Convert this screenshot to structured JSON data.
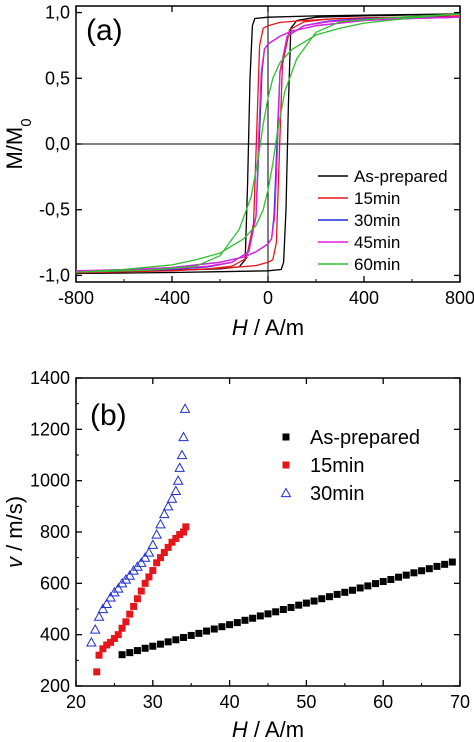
{
  "chart_data": [
    {
      "type": "line",
      "panel_label": "(a)",
      "xlabel_italic": "H",
      "xlabel_rest": " / A/m",
      "ylabel_main": "M/M",
      "ylabel_sub": "0",
      "xlim": [
        -800,
        800
      ],
      "ylim": [
        -1.05,
        1.05
      ],
      "xticks": [
        -800,
        -400,
        0,
        400,
        800
      ],
      "xtick_labels": [
        "-800",
        "-400",
        "0",
        "400",
        "800"
      ],
      "yticks": [
        -1.0,
        -0.5,
        0.0,
        0.5,
        1.0
      ],
      "ytick_labels": [
        "-1,0",
        "-0,5",
        "0,0",
        "0,5",
        "1,0"
      ],
      "zero_lines": true,
      "legend_position": "lower-right",
      "series": [
        {
          "name": "As-prepared",
          "color": "#000000",
          "upper": [
            [
              -800,
              -0.975
            ],
            [
              -400,
              -0.96
            ],
            [
              -200,
              -0.95
            ],
            [
              -120,
              -0.935
            ],
            [
              -95,
              -0.88
            ],
            [
              -85,
              -0.3
            ],
            [
              -75,
              0.5
            ],
            [
              -65,
              0.9
            ],
            [
              -55,
              0.955
            ],
            [
              0,
              0.965
            ],
            [
              200,
              0.975
            ],
            [
              400,
              0.98
            ],
            [
              600,
              0.985
            ],
            [
              800,
              0.99
            ]
          ],
          "lower": [
            [
              800,
              0.99
            ],
            [
              400,
              0.975
            ],
            [
              200,
              0.965
            ],
            [
              120,
              0.94
            ],
            [
              95,
              0.88
            ],
            [
              85,
              0.3
            ],
            [
              75,
              -0.5
            ],
            [
              65,
              -0.9
            ],
            [
              55,
              -0.955
            ],
            [
              0,
              -0.965
            ],
            [
              -200,
              -0.972
            ],
            [
              -400,
              -0.978
            ],
            [
              -800,
              -0.985
            ]
          ]
        },
        {
          "name": "15min",
          "color": "#e4161b",
          "upper": [
            [
              -800,
              -0.98
            ],
            [
              -400,
              -0.965
            ],
            [
              -250,
              -0.95
            ],
            [
              -150,
              -0.93
            ],
            [
              -90,
              -0.87
            ],
            [
              -60,
              -0.6
            ],
            [
              -45,
              0.2
            ],
            [
              -35,
              0.75
            ],
            [
              -20,
              0.88
            ],
            [
              0,
              0.9
            ],
            [
              50,
              0.925
            ],
            [
              150,
              0.94
            ],
            [
              300,
              0.955
            ],
            [
              500,
              0.96
            ],
            [
              800,
              0.975
            ]
          ],
          "lower": [
            [
              800,
              0.975
            ],
            [
              400,
              0.96
            ],
            [
              250,
              0.95
            ],
            [
              150,
              0.93
            ],
            [
              90,
              0.87
            ],
            [
              60,
              0.6
            ],
            [
              45,
              -0.2
            ],
            [
              35,
              -0.75
            ],
            [
              20,
              -0.88
            ],
            [
              0,
              -0.9
            ],
            [
              -50,
              -0.925
            ],
            [
              -150,
              -0.94
            ],
            [
              -300,
              -0.955
            ],
            [
              -500,
              -0.965
            ],
            [
              -800,
              -0.98
            ]
          ]
        },
        {
          "name": "30min",
          "color": "#1f2fd0",
          "upper": [
            [
              -800,
              -0.975
            ],
            [
              -400,
              -0.955
            ],
            [
              -250,
              -0.935
            ],
            [
              -150,
              -0.9
            ],
            [
              -80,
              -0.82
            ],
            [
              -50,
              -0.55
            ],
            [
              -35,
              0.1
            ],
            [
              -25,
              0.55
            ],
            [
              -15,
              0.72
            ],
            [
              0,
              0.76
            ],
            [
              50,
              0.82
            ],
            [
              100,
              0.86
            ],
            [
              200,
              0.9
            ],
            [
              400,
              0.94
            ],
            [
              600,
              0.955
            ],
            [
              800,
              0.965
            ]
          ],
          "lower": [
            [
              800,
              0.965
            ],
            [
              400,
              0.955
            ],
            [
              250,
              0.935
            ],
            [
              150,
              0.9
            ],
            [
              80,
              0.82
            ],
            [
              50,
              0.55
            ],
            [
              35,
              -0.1
            ],
            [
              25,
              -0.55
            ],
            [
              15,
              -0.72
            ],
            [
              0,
              -0.76
            ],
            [
              -50,
              -0.82
            ],
            [
              -100,
              -0.86
            ],
            [
              -200,
              -0.9
            ],
            [
              -400,
              -0.94
            ],
            [
              -600,
              -0.96
            ],
            [
              -800,
              -0.975
            ]
          ]
        },
        {
          "name": "45min",
          "color": "#e020e0",
          "upper": [
            [
              -800,
              -0.97
            ],
            [
              -400,
              -0.95
            ],
            [
              -250,
              -0.93
            ],
            [
              -150,
              -0.9
            ],
            [
              -80,
              -0.82
            ],
            [
              -50,
              -0.55
            ],
            [
              -38,
              0.1
            ],
            [
              -28,
              0.55
            ],
            [
              -15,
              0.72
            ],
            [
              0,
              0.76
            ],
            [
              50,
              0.82
            ],
            [
              100,
              0.86
            ],
            [
              200,
              0.9
            ],
            [
              400,
              0.94
            ],
            [
              600,
              0.955
            ],
            [
              800,
              0.965
            ]
          ],
          "lower": [
            [
              800,
              0.965
            ],
            [
              400,
              0.95
            ],
            [
              250,
              0.93
            ],
            [
              150,
              0.9
            ],
            [
              80,
              0.82
            ],
            [
              50,
              0.55
            ],
            [
              38,
              -0.1
            ],
            [
              28,
              -0.55
            ],
            [
              15,
              -0.72
            ],
            [
              0,
              -0.76
            ],
            [
              -50,
              -0.82
            ],
            [
              -100,
              -0.86
            ],
            [
              -200,
              -0.9
            ],
            [
              -400,
              -0.94
            ],
            [
              -600,
              -0.955
            ],
            [
              -800,
              -0.965
            ]
          ]
        },
        {
          "name": "60min",
          "color": "#2fc02f",
          "upper": [
            [
              -800,
              -0.975
            ],
            [
              -500,
              -0.96
            ],
            [
              -300,
              -0.93
            ],
            [
              -200,
              -0.85
            ],
            [
              -120,
              -0.65
            ],
            [
              -70,
              -0.4
            ],
            [
              -40,
              -0.1
            ],
            [
              -20,
              0.15
            ],
            [
              0,
              0.35
            ],
            [
              20,
              0.5
            ],
            [
              50,
              0.62
            ],
            [
              100,
              0.72
            ],
            [
              200,
              0.83
            ],
            [
              300,
              0.88
            ],
            [
              400,
              0.92
            ],
            [
              600,
              0.96
            ],
            [
              800,
              0.99
            ]
          ],
          "lower": [
            [
              800,
              0.99
            ],
            [
              500,
              0.96
            ],
            [
              300,
              0.93
            ],
            [
              200,
              0.85
            ],
            [
              120,
              0.65
            ],
            [
              70,
              0.4
            ],
            [
              40,
              0.1
            ],
            [
              20,
              -0.15
            ],
            [
              0,
              -0.35
            ],
            [
              -20,
              -0.5
            ],
            [
              -50,
              -0.62
            ],
            [
              -100,
              -0.72
            ],
            [
              -200,
              -0.83
            ],
            [
              -300,
              -0.88
            ],
            [
              -400,
              -0.92
            ],
            [
              -600,
              -0.955
            ],
            [
              -800,
              -0.975
            ]
          ]
        }
      ]
    },
    {
      "type": "scatter",
      "panel_label": "(b)",
      "xlabel_italic": "H",
      "xlabel_rest": " / A/m",
      "ylabel_italic": "v",
      "ylabel_rest": " / m/s)",
      "xlim": [
        20,
        70
      ],
      "ylim": [
        200,
        1400
      ],
      "xticks": [
        20,
        30,
        40,
        50,
        60,
        70
      ],
      "xtick_labels": [
        "20",
        "30",
        "40",
        "50",
        "60",
        "70"
      ],
      "yticks": [
        200,
        400,
        600,
        800,
        1000,
        1200,
        1400
      ],
      "ytick_labels": [
        "200",
        "400",
        "600",
        "800",
        "1000",
        "1200",
        "1400"
      ],
      "legend_position": "top-right",
      "series": [
        {
          "name": "As-prepared",
          "marker": "square",
          "color": "#000000",
          "x": [
            26,
            27,
            28,
            29,
            30,
            31,
            32,
            33,
            34,
            35,
            36,
            37,
            38,
            39,
            40,
            41,
            42,
            43,
            44,
            45,
            46,
            47,
            48,
            49,
            50,
            51,
            52,
            53,
            54,
            55,
            56,
            57,
            58,
            59,
            60,
            61,
            62,
            63,
            64,
            65,
            66,
            67,
            68,
            69
          ],
          "y": [
            322,
            330,
            338,
            347,
            355,
            363,
            372,
            380,
            389,
            397,
            405,
            414,
            422,
            431,
            439,
            447,
            456,
            464,
            473,
            481,
            489,
            498,
            506,
            515,
            523,
            531,
            540,
            548,
            557,
            565,
            573,
            582,
            590,
            599,
            607,
            615,
            624,
            632,
            641,
            649,
            657,
            666,
            674,
            683
          ]
        },
        {
          "name": "15min",
          "marker": "square",
          "color": "#e4161b",
          "x": [
            22.7,
            23,
            23.5,
            24,
            24.5,
            25,
            25.5,
            26,
            26.5,
            27,
            27.5,
            28,
            28.5,
            29,
            29.5,
            30,
            30.5,
            31,
            31.5,
            32,
            32.5,
            33,
            33.5,
            34,
            34.3
          ],
          "y": [
            255,
            320,
            345,
            360,
            370,
            385,
            400,
            425,
            450,
            480,
            510,
            540,
            570,
            600,
            625,
            650,
            680,
            700,
            720,
            740,
            760,
            775,
            790,
            800,
            820
          ]
        },
        {
          "name": "30min",
          "marker": "triangle",
          "color": "#1f2fd0",
          "x": [
            22,
            22.5,
            23,
            23.5,
            24,
            24.5,
            25,
            25.5,
            26,
            26.5,
            27,
            27.5,
            28,
            28.5,
            29,
            29.5,
            30,
            30.5,
            31,
            31.5,
            32,
            32.5,
            33,
            33.3,
            33.5,
            33.8,
            34,
            34.2
          ],
          "y": [
            370,
            420,
            470,
            500,
            520,
            545,
            565,
            580,
            600,
            615,
            630,
            650,
            665,
            680,
            700,
            720,
            750,
            790,
            830,
            870,
            900,
            930,
            960,
            1000,
            1050,
            1100,
            1170,
            1280
          ]
        }
      ]
    }
  ]
}
